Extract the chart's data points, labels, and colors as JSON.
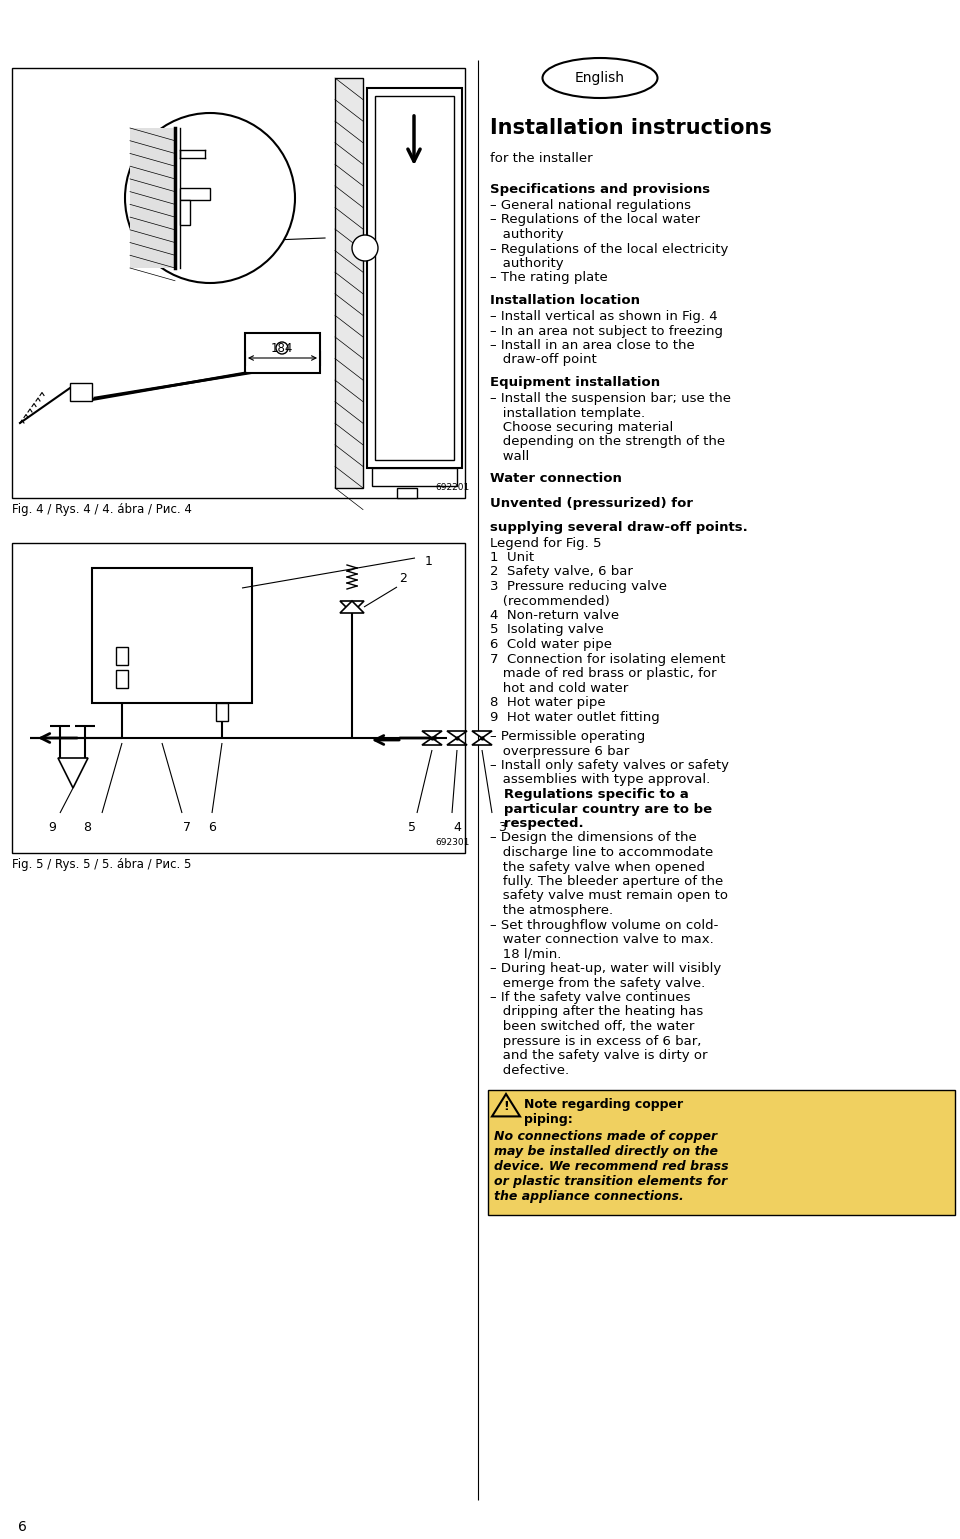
{
  "bg_color": "#ffffff",
  "page_number": "6",
  "english_label": "English",
  "title": "Installation instructions",
  "subtitle": "for the installer",
  "sections": [
    {
      "heading": "Specifications and provisions",
      "bold_head": true,
      "items": [
        [
          false,
          "– General national regulations"
        ],
        [
          false,
          "– Regulations of the local water"
        ],
        [
          false,
          "   authority"
        ],
        [
          false,
          "– Regulations of the local electricity"
        ],
        [
          false,
          "   authority"
        ],
        [
          false,
          "– The rating plate"
        ]
      ]
    },
    {
      "heading": "Installation location",
      "bold_head": true,
      "items": [
        [
          false,
          "– Install vertical as shown in Fig. 4"
        ],
        [
          false,
          "– In an area not subject to freezing"
        ],
        [
          false,
          "– Install in an area close to the"
        ],
        [
          false,
          "   draw-off point"
        ]
      ]
    },
    {
      "heading": "Equipment installation",
      "bold_head": true,
      "items": [
        [
          false,
          "– Install the suspension bar; use the"
        ],
        [
          false,
          "   installation template."
        ],
        [
          false,
          "   Choose securing material"
        ],
        [
          false,
          "   depending on the strength of the"
        ],
        [
          false,
          "   wall"
        ]
      ]
    },
    {
      "heading": "Water connection",
      "bold_head": true,
      "items": []
    },
    {
      "heading": "Unvented (pressurized) for",
      "bold_head": true,
      "items": []
    },
    {
      "heading": "supplying several draw-off points.",
      "bold_head": true,
      "items": [
        [
          false,
          "Legend for Fig. 5"
        ],
        [
          false,
          "1  Unit"
        ],
        [
          false,
          "2  Safety valve, 6 bar"
        ],
        [
          false,
          "3  Pressure reducing valve"
        ],
        [
          false,
          "   (recommended)"
        ],
        [
          false,
          "4  Non-return valve"
        ],
        [
          false,
          "5  Isolating valve"
        ],
        [
          false,
          "6  Cold water pipe"
        ],
        [
          false,
          "7  Connection for isolating element"
        ],
        [
          false,
          "   made of red brass or plastic, for"
        ],
        [
          false,
          "   hot and cold water"
        ],
        [
          false,
          "8  Hot water pipe"
        ],
        [
          false,
          "9  Hot water outlet fitting"
        ],
        [
          false,
          ""
        ],
        [
          false,
          "– Permissible operating"
        ],
        [
          false,
          "   overpressure 6 bar"
        ],
        [
          false,
          "– Install only safety valves or safety"
        ],
        [
          false,
          "   assemblies with type approval."
        ],
        [
          true,
          "   Regulations specific to a"
        ],
        [
          true,
          "   particular country are to be"
        ],
        [
          true,
          "   respected."
        ],
        [
          false,
          "– Design the dimensions of the"
        ],
        [
          false,
          "   discharge line to accommodate"
        ],
        [
          false,
          "   the safety valve when opened"
        ],
        [
          false,
          "   fully. The bleeder aperture of the"
        ],
        [
          false,
          "   safety valve must remain open to"
        ],
        [
          false,
          "   the atmosphere."
        ],
        [
          false,
          "– Set throughflow volume on cold-"
        ],
        [
          false,
          "   water connection valve to max."
        ],
        [
          false,
          "   18 l/min."
        ],
        [
          false,
          "– During heat-up, water will visibly"
        ],
        [
          false,
          "   emerge from the safety valve."
        ],
        [
          false,
          "– If the safety valve continues"
        ],
        [
          false,
          "   dripping after the heating has"
        ],
        [
          false,
          "   been switched off, the water"
        ],
        [
          false,
          "   pressure is in excess of 6 bar,"
        ],
        [
          false,
          "   and the safety valve is dirty or"
        ],
        [
          false,
          "   defective."
        ]
      ]
    }
  ],
  "warning_bg": "#f0d060",
  "warning_title_line1": "Note regarding copper",
  "warning_title_line2": "piping:",
  "warning_lines": [
    "No connections made of copper",
    "may be installed directly on the",
    "device. We recommend red brass",
    "or plastic transition elements for",
    "the appliance connections."
  ],
  "fig4_caption": "Fig. 4 / Rys. 4 / 4. ábra / Рис. 4",
  "fig5_caption": "Fig. 5 / Rys. 5 / 5. ábra / Рис. 5",
  "code_fig4": "692201",
  "code_fig5": "692301"
}
